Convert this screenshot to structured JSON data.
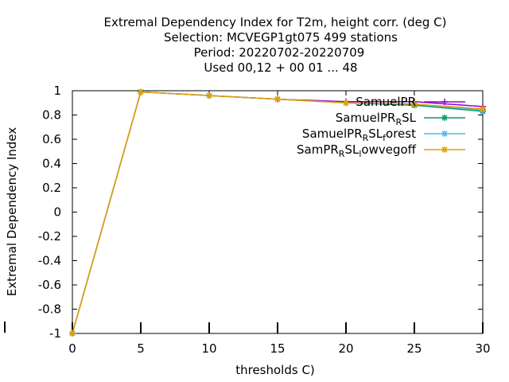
{
  "chart_data": {
    "type": "line",
    "title_lines": [
      "Extremal Dependency Index  for T2m, height corr. (deg C)",
      "Selection: MCVEGP1gt075     499 stations",
      "Period: 20220702-20220709",
      "Used  00,12  + 00 01 ... 48"
    ],
    "xlabel": "thresholds C)",
    "ylabel": "Extremal Dependency Index",
    "xlim": [
      0,
      30
    ],
    "ylim": [
      -1,
      1
    ],
    "xticks": [
      0,
      5,
      10,
      15,
      20,
      25,
      30
    ],
    "yticks": [
      -1,
      -0.8,
      -0.6,
      -0.4,
      -0.2,
      0,
      0.2,
      0.4,
      0.6,
      0.8,
      1
    ],
    "x": [
      0,
      5,
      10,
      15,
      20,
      25,
      30
    ],
    "legend_position": "top-right",
    "series": [
      {
        "name": "SamuelPR",
        "color": "#9400d3",
        "marker": "plus",
        "values": [
          -1,
          0.99,
          0.96,
          0.93,
          0.91,
          0.91,
          0.87
        ]
      },
      {
        "name": "SamuelPR_R SL",
        "color": "#009e73",
        "marker": "star",
        "values": [
          -1,
          0.99,
          0.96,
          0.93,
          0.9,
          0.88,
          0.83
        ]
      },
      {
        "name": "SamuelPR_R SL_f orest",
        "color": "#56b4e9",
        "marker": "star",
        "values": [
          -1,
          0.99,
          0.96,
          0.93,
          0.9,
          0.89,
          0.84
        ]
      },
      {
        "name": "SamPR_R SL_l owvegoff",
        "color": "#e69f00",
        "marker": "star",
        "values": [
          -1,
          0.99,
          0.96,
          0.93,
          0.9,
          0.89,
          0.85
        ]
      }
    ],
    "legend_labels": [
      {
        "parts": [
          "SamuelPR"
        ]
      },
      {
        "parts": [
          "SamuelPR",
          "R",
          "SL"
        ]
      },
      {
        "parts": [
          "SamuelPR",
          "R",
          "SL",
          "f",
          "orest"
        ]
      },
      {
        "parts": [
          "SamPR",
          "R",
          "SL",
          "l",
          "owvegoff"
        ]
      }
    ]
  }
}
